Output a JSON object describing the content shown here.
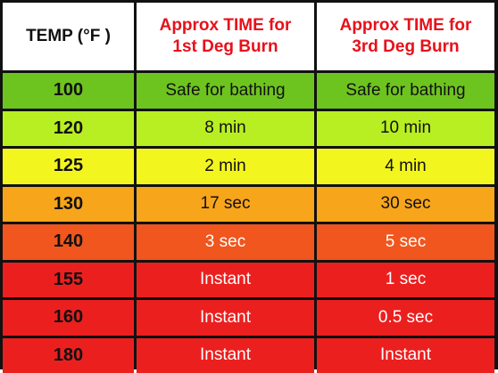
{
  "header": {
    "temp": "TEMP (°F )",
    "first_line1": "Approx TIME for",
    "first_line2": "1st Deg Burn",
    "third_line1": "Approx TIME for",
    "third_line2": "3rd Deg Burn"
  },
  "rows": [
    {
      "temp": "100",
      "first": "Safe for bathing",
      "third": "Safe for bathing",
      "color": "#6ec41f"
    },
    {
      "temp": "120",
      "first": "8 min",
      "third": "10 min",
      "color": "#b8ef22"
    },
    {
      "temp": "125",
      "first": "2 min",
      "third": "4 min",
      "color": "#f3f51f"
    },
    {
      "temp": "130",
      "first": "17 sec",
      "third": "30 sec",
      "color": "#f7a51b"
    },
    {
      "temp": "140",
      "first": "3 sec",
      "third": "5 sec",
      "color": "#f0561e"
    },
    {
      "temp": "155",
      "first": "Instant",
      "third": "1 sec",
      "color": "#ec1f1f"
    },
    {
      "temp": "160",
      "first": "Instant",
      "third": "0.5 sec",
      "color": "#ec1f1f"
    },
    {
      "temp": "180",
      "first": "Instant",
      "third": "Instant",
      "color": "#ec1f1f"
    }
  ]
}
